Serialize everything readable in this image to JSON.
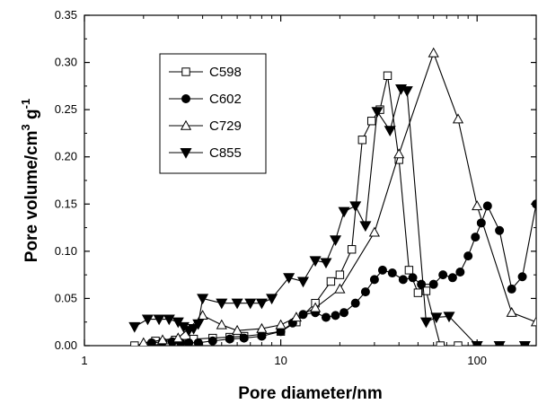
{
  "chart_data": {
    "type": "line",
    "title": "",
    "xlabel": "Pore diameter/nm",
    "ylabel": "Pore volume/cm",
    "ylabel_sup1": "3",
    "ylabel_mid": " g",
    "ylabel_sup2": "-1",
    "xscale": "log",
    "xlim": [
      1,
      200
    ],
    "ylim": [
      0,
      0.35
    ],
    "grid": false,
    "legend_position": "upper-left",
    "x_ticks": [
      1,
      10,
      100
    ],
    "x_tick_labels": [
      "1",
      "10",
      "100"
    ],
    "y_ticks": [
      0,
      0.05,
      0.1,
      0.15,
      0.2,
      0.25,
      0.3,
      0.35
    ],
    "y_tick_labels": [
      "0.00",
      "0.05",
      "0.10",
      "0.15",
      "0.20",
      "0.25",
      "0.30",
      "0.35"
    ],
    "series": [
      {
        "name": "C598",
        "marker": "open-square",
        "x": [
          1.8,
          2.3,
          2.9,
          3.6,
          4.5,
          5.5,
          6.5,
          8,
          10,
          12,
          15,
          18,
          20,
          23,
          26,
          29,
          32,
          35,
          40,
          45,
          50,
          55,
          65,
          80,
          100,
          130,
          175
        ],
        "y": [
          0.0,
          0.005,
          0.006,
          0.007,
          0.008,
          0.009,
          0.01,
          0.012,
          0.015,
          0.025,
          0.045,
          0.068,
          0.075,
          0.102,
          0.218,
          0.238,
          0.25,
          0.286,
          0.197,
          0.08,
          0.056,
          0.058,
          0.0,
          0.0,
          0.0,
          0.0,
          0.0
        ]
      },
      {
        "name": "C602",
        "marker": "filled-circle",
        "x": [
          2.2,
          2.5,
          2.8,
          3.1,
          3.4,
          3.8,
          4.5,
          5.5,
          6.5,
          8,
          10,
          11.5,
          13,
          15,
          17,
          19,
          21,
          24,
          27,
          30,
          33,
          37,
          42,
          47,
          52,
          60,
          67,
          75,
          82,
          90,
          98,
          105,
          113,
          130,
          150,
          170,
          200
        ],
        "y": [
          0.003,
          0.004,
          0.004,
          0.003,
          0.003,
          0.003,
          0.005,
          0.007,
          0.008,
          0.01,
          0.015,
          0.024,
          0.033,
          0.035,
          0.03,
          0.032,
          0.035,
          0.045,
          0.057,
          0.07,
          0.08,
          0.077,
          0.07,
          0.072,
          0.065,
          0.065,
          0.075,
          0.072,
          0.078,
          0.095,
          0.115,
          0.13,
          0.148,
          0.122,
          0.06,
          0.073,
          0.15
        ]
      },
      {
        "name": "C729",
        "marker": "open-triangle",
        "x": [
          2,
          2.5,
          3,
          4,
          5,
          6,
          8,
          10,
          12,
          15,
          20,
          30,
          40,
          60,
          80,
          100,
          150,
          200
        ],
        "y": [
          0.003,
          0.006,
          0.008,
          0.032,
          0.022,
          0.016,
          0.018,
          0.022,
          0.03,
          0.04,
          0.06,
          0.12,
          0.203,
          0.31,
          0.24,
          0.148,
          0.035,
          0.025
        ]
      },
      {
        "name": "C855",
        "marker": "filled-triangle-down",
        "x": [
          1.8,
          2.1,
          2.4,
          2.7,
          3.0,
          3.2,
          3.4,
          3.6,
          3.8,
          4.0,
          5,
          6,
          7,
          8,
          9,
          11,
          13,
          15,
          17,
          19,
          21,
          24,
          27,
          31,
          36,
          41,
          44,
          55,
          62,
          72,
          100,
          130,
          175
        ],
        "y": [
          0.02,
          0.028,
          0.028,
          0.028,
          0.025,
          0.02,
          0.016,
          0.018,
          0.023,
          0.05,
          0.045,
          0.045,
          0.045,
          0.045,
          0.05,
          0.072,
          0.068,
          0.09,
          0.088,
          0.112,
          0.142,
          0.148,
          0.127,
          0.248,
          0.228,
          0.272,
          0.27,
          0.025,
          0.03,
          0.031,
          0.0,
          0.0,
          0.0
        ]
      }
    ]
  }
}
